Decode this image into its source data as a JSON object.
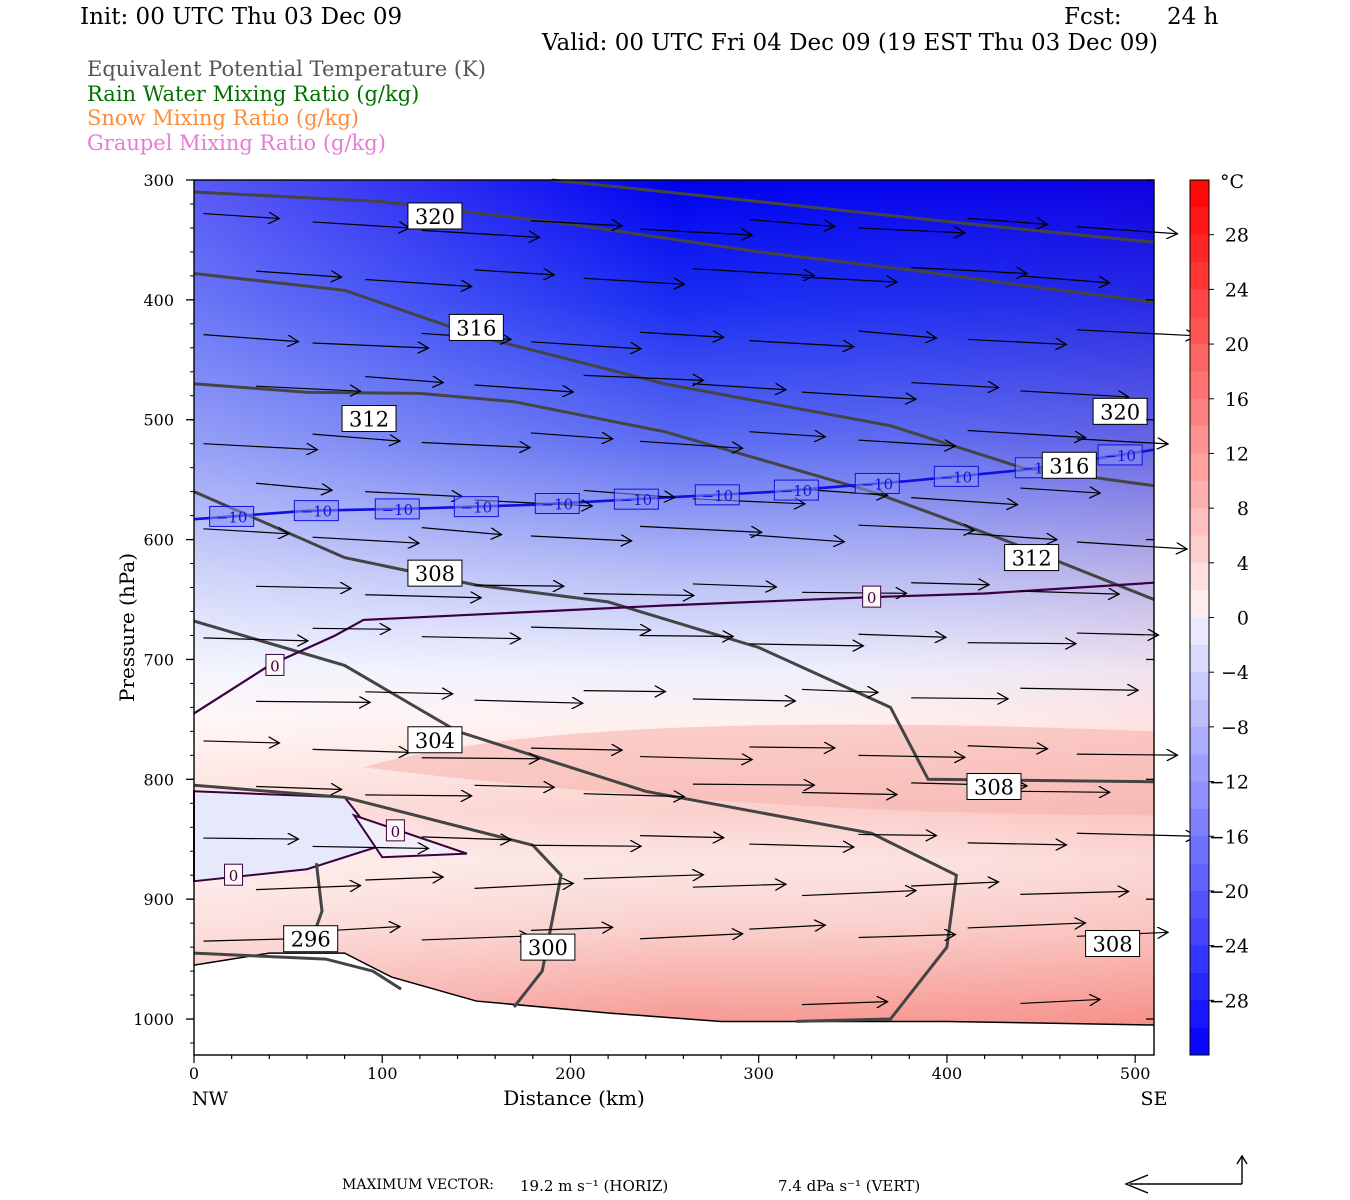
{
  "header": {
    "init": "Init: 00 UTC Thu 03 Dec 09",
    "fcst_label": "Fcst:",
    "fcst_value": "24 h",
    "valid": "Valid: 00 UTC Fri 04 Dec 09 (19 EST Thu 03 Dec 09)"
  },
  "legend": [
    {
      "text": "Equivalent Potential Temperature (K)",
      "color": "#555555"
    },
    {
      "text": "Rain Water Mixing Ratio (g/kg)",
      "color": "#007000"
    },
    {
      "text": "Snow Mixing Ratio (g/kg)",
      "color": "#ff8c3a"
    },
    {
      "text": "Graupel Mixing Ratio (g/kg)",
      "color": "#e87ad8"
    }
  ],
  "footer": {
    "max_vector_label": "MAXIMUM VECTOR:",
    "horiz": "19.2 m s⁻¹ (HORIZ)",
    "vert": "7.4 dPa s⁻¹ (VERT)"
  },
  "chart_data": {
    "type": "cross-section",
    "xlabel": "Distance (km)",
    "ylabel": "Pressure (hPa)",
    "xlim": [
      0,
      510
    ],
    "ylim": [
      1030,
      300
    ],
    "x_ticks": [
      0,
      100,
      200,
      300,
      400,
      500
    ],
    "y_ticks": [
      300,
      400,
      500,
      600,
      700,
      800,
      900,
      1000
    ],
    "x_end_labels": {
      "left": "NW",
      "right": "SE"
    },
    "colorbar": {
      "unit": "°C",
      "range": [
        -32,
        32
      ],
      "labels": [
        28,
        24,
        20,
        16,
        12,
        8,
        4,
        0,
        -4,
        -8,
        -12,
        -16,
        -20,
        -24,
        -28
      ]
    },
    "temperature_0C_contour": {
      "label": "0",
      "color": "#3a0040",
      "points": [
        [
          0,
          745
        ],
        [
          40,
          705
        ],
        [
          75,
          680
        ],
        [
          90,
          667
        ],
        [
          250,
          655
        ],
        [
          360,
          648
        ],
        [
          420,
          645
        ],
        [
          510,
          636
        ]
      ]
    },
    "temperature_minus10C_contour": {
      "label": "−10",
      "color": "#1010e0",
      "points": [
        [
          0,
          583
        ],
        [
          60,
          576
        ],
        [
          120,
          574
        ],
        [
          180,
          571
        ],
        [
          250,
          565
        ],
        [
          310,
          560
        ],
        [
          380,
          551
        ],
        [
          440,
          542
        ],
        [
          510,
          525
        ]
      ]
    },
    "theta_e_contours": [
      {
        "value": 320,
        "points": [
          [
            0,
            310
          ],
          [
            100,
            318
          ],
          [
            200,
            337
          ],
          [
            300,
            360
          ],
          [
            380,
            375
          ],
          [
            450,
            390
          ],
          [
            510,
            402
          ]
        ]
      },
      {
        "value": 320,
        "points": [
          [
            190,
            300
          ],
          [
            300,
            318
          ],
          [
            420,
            338
          ],
          [
            510,
            352
          ]
        ]
      },
      {
        "value": 316,
        "points": [
          [
            0,
            378
          ],
          [
            80,
            392
          ],
          [
            150,
            430
          ],
          [
            250,
            470
          ],
          [
            370,
            505
          ],
          [
            440,
            540
          ],
          [
            510,
            555
          ]
        ]
      },
      {
        "value": 316,
        "points": [
          [
            0,
            470
          ],
          [
            60,
            477
          ],
          [
            120,
            478
          ],
          [
            170,
            485
          ],
          [
            250,
            510
          ],
          [
            360,
            560
          ],
          [
            430,
            600
          ],
          [
            510,
            650
          ]
        ]
      },
      {
        "value": 312,
        "points": [
          [
            0,
            560
          ],
          [
            80,
            615
          ],
          [
            150,
            638
          ],
          [
            220,
            652
          ],
          [
            300,
            690
          ],
          [
            370,
            740
          ],
          [
            390,
            800
          ],
          [
            510,
            802
          ]
        ]
      },
      {
        "value": 308,
        "points": [
          [
            0,
            668
          ],
          [
            80,
            705
          ],
          [
            140,
            760
          ],
          [
            240,
            810
          ],
          [
            360,
            845
          ],
          [
            405,
            880
          ],
          [
            400,
            940
          ],
          [
            370,
            1000
          ],
          [
            320,
            1002
          ]
        ]
      },
      {
        "value": 304,
        "points": [
          [
            0,
            805
          ],
          [
            80,
            815
          ],
          [
            180,
            855
          ],
          [
            195,
            880
          ],
          [
            185,
            960
          ],
          [
            170,
            990
          ]
        ]
      },
      {
        "value": 300,
        "points": [
          [
            0,
            945
          ],
          [
            70,
            950
          ],
          [
            95,
            960
          ],
          [
            110,
            975
          ]
        ]
      },
      {
        "value": 296,
        "points": [
          [
            65,
            870
          ],
          [
            68,
            910
          ],
          [
            60,
            945
          ]
        ]
      }
    ],
    "theta_e_labels": [
      {
        "value": 320,
        "x": 128,
        "p": 330
      },
      {
        "value": 316,
        "x": 150,
        "p": 423
      },
      {
        "value": 312,
        "x": 93,
        "p": 499
      },
      {
        "value": 308,
        "x": 128,
        "p": 628
      },
      {
        "value": 304,
        "x": 128,
        "p": 767
      },
      {
        "value": 300,
        "x": 188,
        "p": 940
      },
      {
        "value": 296,
        "x": 62,
        "p": 933
      },
      {
        "value": 320,
        "x": 492,
        "p": 493
      },
      {
        "value": 316,
        "x": 465,
        "p": 538
      },
      {
        "value": 312,
        "x": 445,
        "p": 615
      },
      {
        "value": 308,
        "x": 425,
        "p": 806
      },
      {
        "value": 308,
        "x": 488,
        "p": 937
      }
    ],
    "terrain_boundary": [
      [
        0,
        955
      ],
      [
        40,
        945
      ],
      [
        80,
        945
      ],
      [
        105,
        965
      ],
      [
        150,
        985
      ],
      [
        220,
        995
      ],
      [
        280,
        1002
      ],
      [
        400,
        1002
      ],
      [
        510,
        1005
      ]
    ]
  }
}
